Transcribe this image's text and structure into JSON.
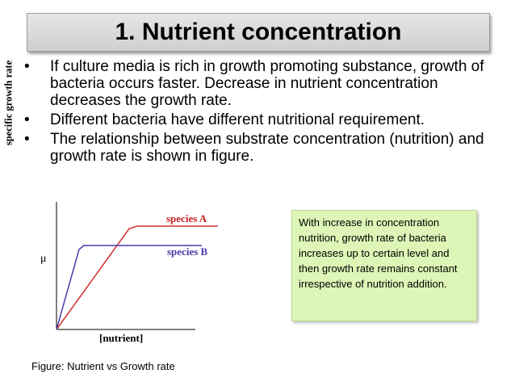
{
  "title": "1. Nutrient concentration",
  "bullets": [
    "If culture media is rich in growth promoting substance, growth of bacteria occurs faster. Decrease in nutrient concentration decreases the growth rate.",
    "Different bacteria have different nutritional requirement.",
    "The relationship between substrate concentration (nutrition) and growth rate is shown in figure."
  ],
  "bullet_glyph": "•",
  "note": "With increase in concentration nutrition, growth rate of bacteria increases up to certain level and then growth rate remains constant irrespective of nutrition addition.",
  "caption": "Figure: Nutrient vs Growth rate",
  "chart_data": {
    "type": "line",
    "xlabel": "[nutrient]",
    "ylabel": "specific growth rate",
    "y_tick_label": "μ",
    "series": [
      {
        "name": "species A",
        "color": "#d23030",
        "x": [
          0,
          0.45,
          0.5,
          1.0
        ],
        "y": [
          0,
          0.78,
          0.8,
          0.8
        ]
      },
      {
        "name": "species B",
        "color": "#4a3aa8",
        "x": [
          0,
          0.14,
          0.17,
          0.9
        ],
        "y": [
          0,
          0.62,
          0.65,
          0.65
        ]
      }
    ],
    "xlim": [
      0,
      1
    ],
    "ylim": [
      0,
      1
    ]
  }
}
